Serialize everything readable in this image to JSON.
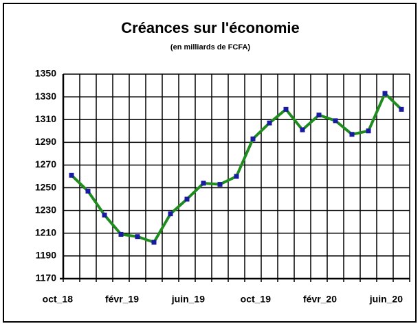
{
  "chart_data": {
    "type": "line",
    "title": "Créances sur l'économie",
    "subtitle": "(en milliards de FCFA)",
    "categories": [
      "oct_18",
      null,
      null,
      null,
      "févr_19",
      null,
      null,
      null,
      "juin_19",
      null,
      null,
      null,
      "oct_19",
      null,
      null,
      null,
      "févr_20",
      null,
      null,
      null,
      "juin_20"
    ],
    "series": [
      {
        "name": "Créances sur l'économie",
        "color": "#1f8c1f",
        "marker_color": "#1a1aa0",
        "values": [
          1261,
          1247,
          1226,
          1209,
          1207,
          1202,
          1227,
          1240,
          1254,
          1253,
          1260,
          1293,
          1307,
          1319,
          1301,
          1314,
          1309,
          1297,
          1300,
          1333,
          1319
        ]
      }
    ],
    "ylim": [
      1170,
      1350
    ],
    "yticks": [
      1170,
      1190,
      1210,
      1230,
      1250,
      1270,
      1290,
      1310,
      1330,
      1350
    ],
    "grid": true
  }
}
